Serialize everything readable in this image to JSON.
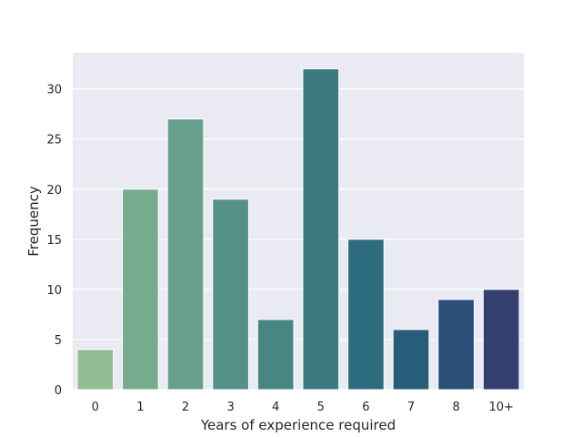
{
  "chart_data": {
    "type": "bar",
    "title": "",
    "xlabel": "Years of experience required",
    "ylabel": "Frequency",
    "categories": [
      "0",
      "1",
      "2",
      "3",
      "4",
      "5",
      "6",
      "7",
      "8",
      "10+"
    ],
    "values": [
      4,
      20,
      27,
      19,
      7,
      32,
      15,
      6,
      9,
      10
    ],
    "ylim": [
      0,
      33.6
    ],
    "yticks": [
      0,
      5,
      10,
      15,
      20,
      25,
      30
    ],
    "grid": true,
    "legend": "none",
    "colors": [
      "#8fbc94",
      "#78ab8e",
      "#67a18d",
      "#559089",
      "#478783",
      "#3b7a80",
      "#2d6b7e",
      "#285d7a",
      "#2b4f79",
      "#323f6f"
    ],
    "background": "#eaeaf2"
  }
}
